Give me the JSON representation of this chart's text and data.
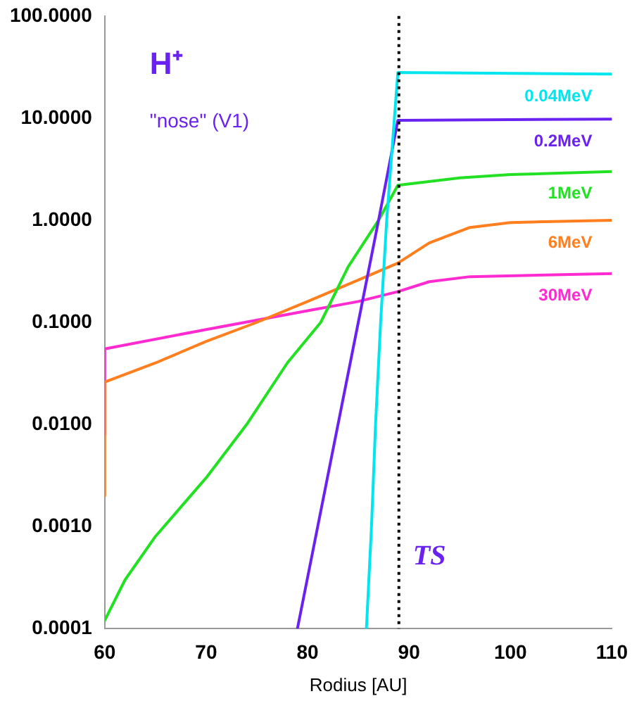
{
  "chart_data": {
    "type": "line",
    "xlabel": "Rodius [AU]",
    "log": "y",
    "grid": false,
    "legend": false,
    "marker": "none",
    "line_style": "solid",
    "xlim": [
      60,
      110
    ],
    "xticks": [
      60,
      70,
      80,
      90,
      100,
      110
    ],
    "ylim": [
      0.0001,
      100
    ],
    "yticks": [
      {
        "value": 0.0001,
        "label": "0.0001"
      },
      {
        "value": 0.001,
        "label": "0.0010"
      },
      {
        "value": 0.01,
        "label": "0.0100"
      },
      {
        "value": 0.1,
        "label": "0.1000"
      },
      {
        "value": 1,
        "label": "1.0000"
      },
      {
        "value": 10,
        "label": "10.0000"
      },
      {
        "value": 100,
        "label": "100.0000"
      }
    ],
    "annotations": [
      "H⁺",
      "\"nose\" (V1)"
    ],
    "ref_lines": [
      {
        "axis": "x",
        "value": 89,
        "label": "TS",
        "color": "#000000",
        "line_style": "dotted"
      }
    ],
    "series": [
      {
        "name": "0.04MeV",
        "color": "#00e5ee",
        "x": [
          85.8,
          86.3,
          86.7,
          87.2,
          87.8,
          88.9,
          110
        ],
        "values": [
          0.0001,
          0.001,
          0.01,
          0.1,
          1,
          28,
          27
        ]
      },
      {
        "name": "0.2MeV",
        "color": "#6a22f0",
        "x": [
          79,
          81,
          83,
          85,
          87,
          88.9,
          110
        ],
        "values": [
          0.0001,
          0.001,
          0.01,
          0.1,
          1,
          9.5,
          9.8
        ]
      },
      {
        "name": "1MeV",
        "color": "#22e022",
        "x": [
          60,
          62,
          65,
          70,
          74,
          78,
          81.3,
          84,
          87,
          88.9,
          95,
          100,
          110
        ],
        "values": [
          0.00012,
          0.0003,
          0.0008,
          0.003,
          0.01,
          0.04,
          0.1,
          0.35,
          1,
          2.2,
          2.6,
          2.8,
          3.0
        ]
      },
      {
        "name": "6MeV",
        "color": "#ff7f1e",
        "x": [
          60,
          60,
          65,
          70,
          75,
          80,
          85,
          88.9,
          92,
          96,
          100,
          110
        ],
        "values": [
          0.002,
          0.026,
          0.04,
          0.065,
          0.1,
          0.16,
          0.26,
          0.38,
          0.6,
          0.85,
          0.95,
          1.0
        ]
      },
      {
        "name": "30MeV",
        "color": "#ff2ad0",
        "x": [
          60,
          60,
          70,
          80,
          85,
          88.9,
          92,
          96,
          110
        ],
        "values": [
          0.008,
          0.055,
          0.085,
          0.13,
          0.16,
          0.2,
          0.25,
          0.28,
          0.3
        ]
      }
    ]
  }
}
